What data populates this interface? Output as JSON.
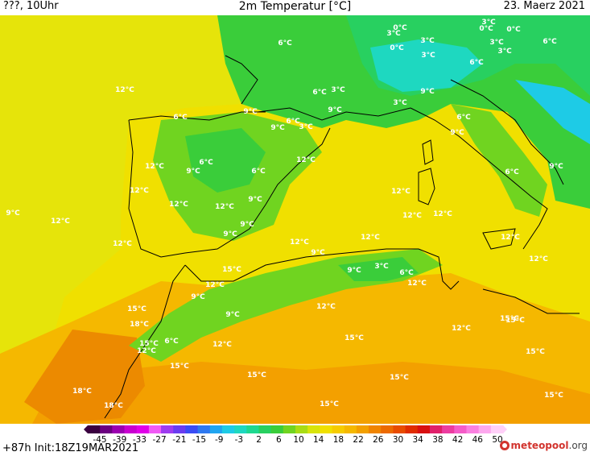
{
  "header": {
    "location": "???, 10Uhr",
    "title": "2m Temperatur [°C]",
    "date": "23. Maerz 2021"
  },
  "footer": {
    "run_info": "+87h  Init:18Z19MAR2021",
    "brand_name": "meteopool",
    "brand_suffix": ".org"
  },
  "legend": {
    "ticks": [
      "-45",
      "-39",
      "-33",
      "-27",
      "-21",
      "-15",
      "-9",
      "-3",
      "2",
      "6",
      "10",
      "14",
      "18",
      "22",
      "26",
      "30",
      "34",
      "38",
      "42",
      "46",
      "50"
    ],
    "colors": [
      "#3a0040",
      "#6b0080",
      "#9b00b0",
      "#c800d0",
      "#e000e8",
      "#f05af5",
      "#9e3cf0",
      "#6a3cf0",
      "#3a4cf5",
      "#2e78f0",
      "#20a5f0",
      "#1ecbe6",
      "#1ed8c0",
      "#1ed890",
      "#28d060",
      "#3acd3a",
      "#70d420",
      "#a8dc14",
      "#d8e40a",
      "#f0e000",
      "#f6cc00",
      "#f5b800",
      "#f3a000",
      "#f08400",
      "#ec6a00",
      "#e84c00",
      "#e02c00",
      "#d81010",
      "#e0206a",
      "#ec3ca0",
      "#f55cc8",
      "#fa80e0",
      "#fda8ee",
      "#ffd0f8"
    ]
  },
  "map": {
    "temperature_labels": [
      {
        "text": "6°C"
      },
      {
        "text": "0°C"
      },
      {
        "text": "3°C"
      },
      {
        "text": "6°C"
      },
      {
        "text": "3°C"
      },
      {
        "text": "0°C"
      },
      {
        "text": "3°C"
      },
      {
        "text": "0°C"
      },
      {
        "text": "3°C"
      },
      {
        "text": "3°C"
      },
      {
        "text": "3°C"
      },
      {
        "text": "6°C"
      },
      {
        "text": "12°C"
      },
      {
        "text": "6°C"
      },
      {
        "text": "3°C"
      },
      {
        "text": "9°C"
      },
      {
        "text": "6°C"
      },
      {
        "text": "3°C"
      },
      {
        "text": "9°C"
      },
      {
        "text": "6°C"
      },
      {
        "text": "9°C"
      },
      {
        "text": "3°C"
      },
      {
        "text": "9°C"
      },
      {
        "text": "0°C"
      },
      {
        "text": "6°C"
      },
      {
        "text": "9°C"
      },
      {
        "text": "12°C"
      },
      {
        "text": "6°C"
      },
      {
        "text": "12°C"
      },
      {
        "text": "9°C"
      },
      {
        "text": "6°C"
      },
      {
        "text": "12°C"
      },
      {
        "text": "12°C"
      },
      {
        "text": "9°C"
      },
      {
        "text": "12°C"
      },
      {
        "text": "12°C"
      },
      {
        "text": "12°C"
      },
      {
        "text": "9°C"
      },
      {
        "text": "12°C"
      },
      {
        "text": "12°C"
      },
      {
        "text": "9°C"
      },
      {
        "text": "9°C"
      },
      {
        "text": "12°C"
      },
      {
        "text": "12°C"
      },
      {
        "text": "12°C"
      },
      {
        "text": "6°C"
      },
      {
        "text": "9°C"
      },
      {
        "text": "15°C"
      },
      {
        "text": "12°C"
      },
      {
        "text": "9°C"
      },
      {
        "text": "9°C"
      },
      {
        "text": "12°C"
      },
      {
        "text": "15°C"
      },
      {
        "text": "9°C"
      },
      {
        "text": "3°C"
      },
      {
        "text": "6°C"
      },
      {
        "text": "12°C"
      },
      {
        "text": "12°C"
      },
      {
        "text": "9°C"
      },
      {
        "text": "15°C"
      },
      {
        "text": "18°C"
      },
      {
        "text": "12°C"
      },
      {
        "text": "15°C"
      },
      {
        "text": "6°C"
      },
      {
        "text": "12°C"
      },
      {
        "text": "12°C"
      },
      {
        "text": "15°C"
      },
      {
        "text": "12°C"
      },
      {
        "text": "15°C"
      },
      {
        "text": "15°C"
      },
      {
        "text": "15°C"
      },
      {
        "text": "15°C"
      },
      {
        "text": "18°C"
      },
      {
        "text": "15°C"
      },
      {
        "text": "15°C"
      },
      {
        "text": "18°C"
      },
      {
        "text": "15°C"
      }
    ]
  }
}
